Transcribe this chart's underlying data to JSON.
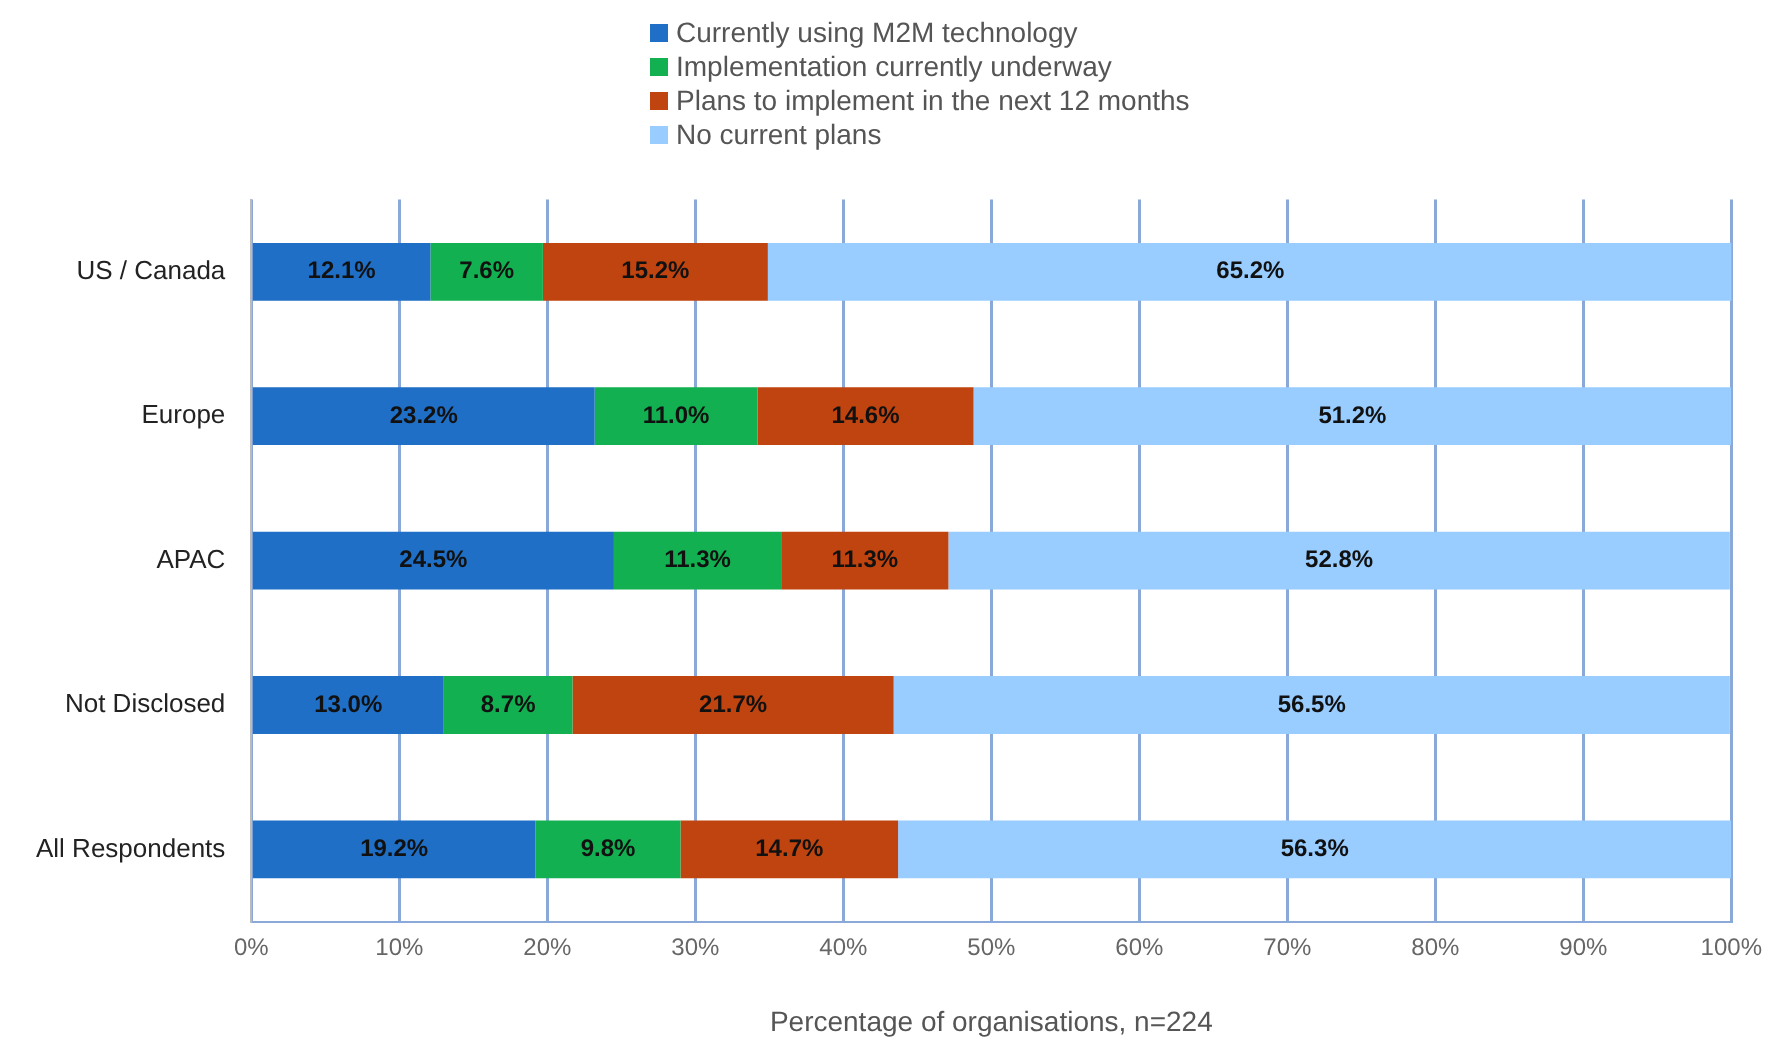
{
  "chart_data": {
    "type": "bar",
    "orientation": "horizontal",
    "stacked": true,
    "xlabel": "Percentage of organisations, n=224",
    "categories": [
      "US / Canada",
      "Europe",
      "APAC",
      "Not Disclosed",
      "All Respondents"
    ],
    "series": [
      {
        "name": "Currently using M2M technology",
        "color": "#1f6fc6",
        "values": [
          12.1,
          23.2,
          24.5,
          13.0,
          19.2
        ],
        "value_labels": [
          "12.1%",
          "23.2%",
          "24.5%",
          "13.0%",
          "19.2%"
        ]
      },
      {
        "name": "Implementation currently underway",
        "color": "#12b050",
        "values": [
          7.6,
          11.0,
          11.3,
          8.7,
          9.8
        ],
        "value_labels": [
          "7.6%",
          "11.0%",
          "11.3%",
          "8.7%",
          "9.8%"
        ]
      },
      {
        "name": "Plans to implement in the next 12 months",
        "color": "#c0440f",
        "values": [
          15.2,
          14.6,
          11.3,
          21.7,
          14.7
        ],
        "value_labels": [
          "15.2%",
          "14.6%",
          "11.3%",
          "21.7%",
          "14.7%"
        ]
      },
      {
        "name": "No current plans",
        "color": "#99ccff",
        "values": [
          65.2,
          51.2,
          52.8,
          56.5,
          56.3
        ],
        "value_labels": [
          "65.2%",
          "51.2%",
          "52.8%",
          "56.5%",
          "56.3%"
        ]
      }
    ],
    "xlim": [
      0,
      100
    ],
    "xticks": [
      {
        "value": 0,
        "label": "0%"
      },
      {
        "value": 10,
        "label": "10%"
      },
      {
        "value": 20,
        "label": "20%"
      },
      {
        "value": 30,
        "label": "30%"
      },
      {
        "value": 40,
        "label": "40%"
      },
      {
        "value": 50,
        "label": "50%"
      },
      {
        "value": 60,
        "label": "60%"
      },
      {
        "value": 70,
        "label": "70%"
      },
      {
        "value": 80,
        "label": "80%"
      },
      {
        "value": 90,
        "label": "90%"
      },
      {
        "value": 100,
        "label": "100%"
      }
    ],
    "grid": "x",
    "legend": "top"
  }
}
